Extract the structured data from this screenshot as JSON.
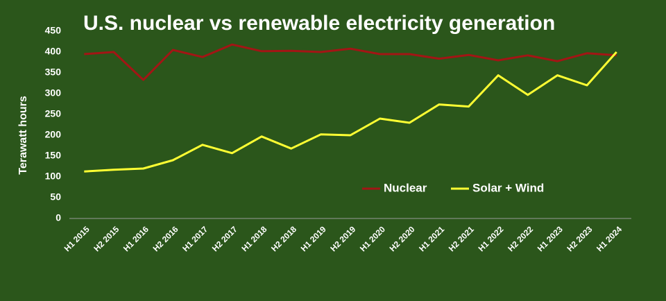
{
  "chart_data": {
    "type": "line",
    "title": "U.S. nuclear vs renewable electricity generation",
    "y_label": "Terawatt hours",
    "categories": [
      "H1 2015",
      "H2 2015",
      "H1 2016",
      "H2 2016",
      "H1 2017",
      "H2 2017",
      "H1 2018",
      "H2 2018",
      "H1 2019",
      "H2 2019",
      "H1 2020",
      "H2 2020",
      "H1 2021",
      "H2 2021",
      "H1 2022",
      "H2 2022",
      "H1 2023",
      "H2 2023",
      "H1 2024"
    ],
    "series": [
      {
        "name": "Nuclear",
        "color": "#a31515",
        "values": [
          395,
          400,
          333,
          405,
          388,
          418,
          402,
          403,
          400,
          408,
          395,
          395,
          384,
          393,
          380,
          392,
          378,
          397,
          392
        ]
      },
      {
        "name": "Solar + Wind",
        "color": "#ffff33",
        "values": [
          113,
          117,
          120,
          140,
          177,
          157,
          197,
          168,
          202,
          200,
          240,
          230,
          274,
          269,
          344,
          297,
          344,
          320,
          400
        ]
      }
    ],
    "ylim": [
      0,
      450
    ],
    "yticks": [
      0,
      50,
      100,
      150,
      200,
      250,
      300,
      350,
      400,
      450
    ],
    "grid": false,
    "legend": "lower right"
  }
}
